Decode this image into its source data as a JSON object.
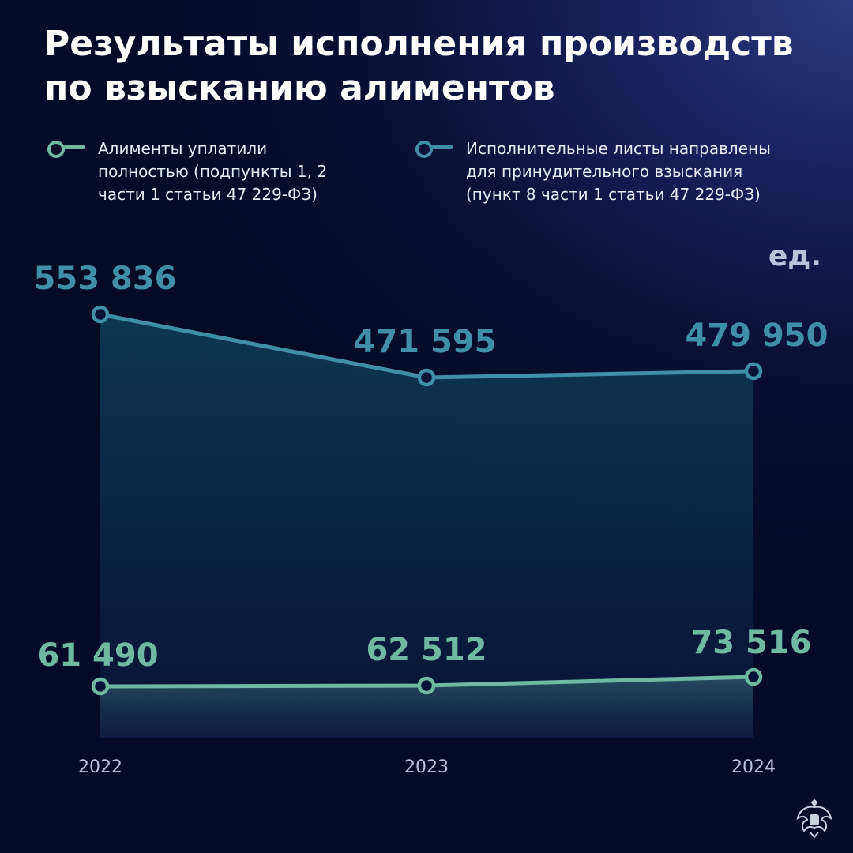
{
  "title_line1": "Результаты исполнения производств",
  "title_line2": "по взысканию алиментов",
  "unit": "ед.",
  "colors": {
    "series_bottom": "#6fb9a3",
    "series_top": "#3f8fa8",
    "background": "#0a1036"
  },
  "icons": {
    "emblem": "coat-of-arms-icon"
  },
  "chart_data": {
    "type": "area",
    "categories": [
      "2022",
      "2023",
      "2024"
    ],
    "series": [
      {
        "name": "Исполнительные листы направлены для принудительного взыскания (пункт 8 части 1 статьи 47 229-ФЗ)",
        "legend_lines": [
          "Исполнительные листы направлены",
          "для принудительного взыскания",
          "(пункт 8 части 1 статьи 47 229-ФЗ)"
        ],
        "values": [
          553836,
          471595,
          479950
        ],
        "labels": [
          "553 836",
          "471 595",
          "479 950"
        ],
        "color": "#3f8fa8"
      },
      {
        "name": "Алименты уплатили полностью (подпункты 1, 2 части 1 статьи 47 229-ФЗ)",
        "legend_lines": [
          "Алименты уплатили",
          "полностью (подпункты 1, 2",
          "части 1 статьи 47 229-ФЗ)"
        ],
        "values": [
          61490,
          62512,
          73516
        ],
        "labels": [
          "61 490",
          "62 512",
          "73 516"
        ],
        "color": "#6fb9a3"
      }
    ],
    "ylabel": "ед.",
    "grid": false,
    "legend": "top"
  }
}
